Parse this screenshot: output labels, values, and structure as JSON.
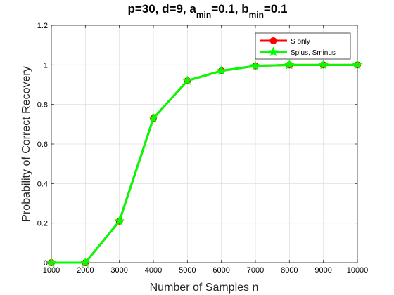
{
  "chart_data": {
    "type": "line",
    "title": {
      "prefix": "p=30,  d=9, a",
      "sub_a": "min",
      "middle": "=0.1, b",
      "sub_b": "min",
      "suffix": "=0.1"
    },
    "xlabel": "Number of Samples n",
    "ylabel": "Probability of Correct Recovery",
    "x": [
      1000,
      2000,
      3000,
      4000,
      5000,
      6000,
      7000,
      8000,
      9000,
      10000
    ],
    "xlim": [
      1000,
      10000
    ],
    "ylim": [
      0,
      1.2
    ],
    "xticks": [
      1000,
      2000,
      3000,
      4000,
      5000,
      6000,
      7000,
      8000,
      9000,
      10000
    ],
    "yticks": [
      0,
      0.2,
      0.4,
      0.6,
      0.8,
      1,
      1.2
    ],
    "xtick_labels": [
      "1000",
      "2000",
      "3000",
      "4000",
      "5000",
      "6000",
      "7000",
      "8000",
      "9000",
      "10000"
    ],
    "ytick_labels": [
      "0",
      "0.2",
      "0.4",
      "0.6",
      "0.8",
      "1",
      "1.2"
    ],
    "grid": true,
    "legend_position": "top-right",
    "series": [
      {
        "name": "S only",
        "color": "#ff0000",
        "marker": "circle",
        "values": [
          0,
          0,
          0.21,
          0.73,
          0.92,
          0.97,
          0.995,
          1,
          1,
          1
        ]
      },
      {
        "name": "Splus, Sminus",
        "color": "#00ff00",
        "marker": "star",
        "values": [
          0,
          0,
          0.21,
          0.73,
          0.92,
          0.97,
          0.995,
          1,
          1,
          1
        ]
      }
    ]
  }
}
